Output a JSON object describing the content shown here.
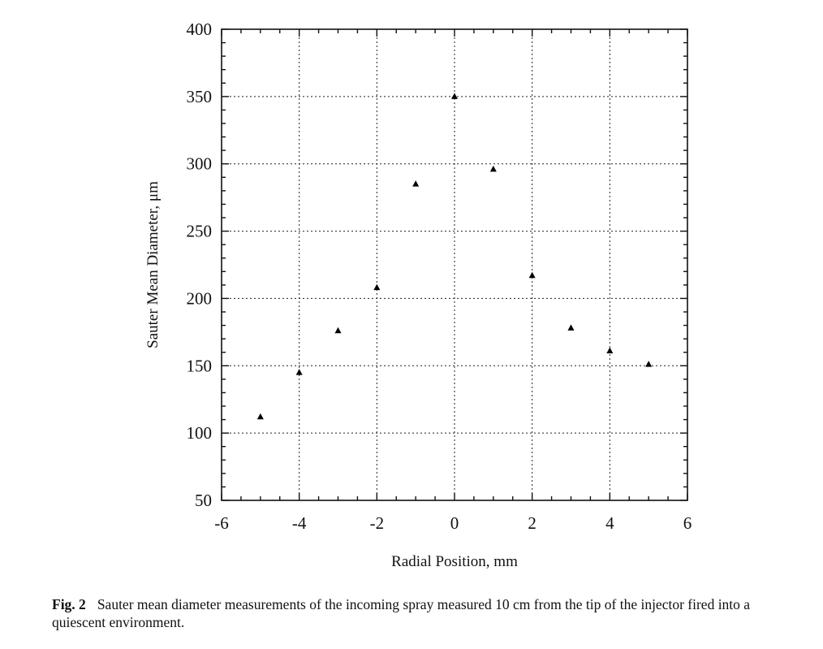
{
  "chart_data": {
    "type": "scatter",
    "xlabel": "Radial Position, mm",
    "ylabel": "Sauter Mean Diameter, μm",
    "xlim": [
      -6,
      6
    ],
    "ylim": [
      50,
      400
    ],
    "x_ticks": [
      -6,
      -4,
      -2,
      0,
      2,
      4,
      6
    ],
    "y_ticks": [
      50,
      100,
      150,
      200,
      250,
      300,
      350,
      400
    ],
    "x_tick_labels": [
      "-6",
      "-4",
      "-2",
      "0",
      "2",
      "4",
      "6"
    ],
    "y_tick_labels": [
      "50",
      "100",
      "150",
      "200",
      "250",
      "300",
      "350",
      "400"
    ],
    "grid": true,
    "marker": "triangle",
    "series": [
      {
        "x": [
          -5,
          -4,
          -3,
          -2,
          -1,
          0,
          1,
          2,
          3,
          4,
          5
        ],
        "y": [
          112,
          145,
          176,
          208,
          285,
          350,
          296,
          217,
          178,
          161,
          151
        ]
      }
    ]
  },
  "caption": {
    "label": "Fig. 2",
    "text": "Sauter mean diameter measurements of the incoming spray measured 10 cm from the tip of the injector fired into a quiescent environment."
  },
  "colors": {
    "ink": "#111111",
    "background": "#ffffff"
  }
}
